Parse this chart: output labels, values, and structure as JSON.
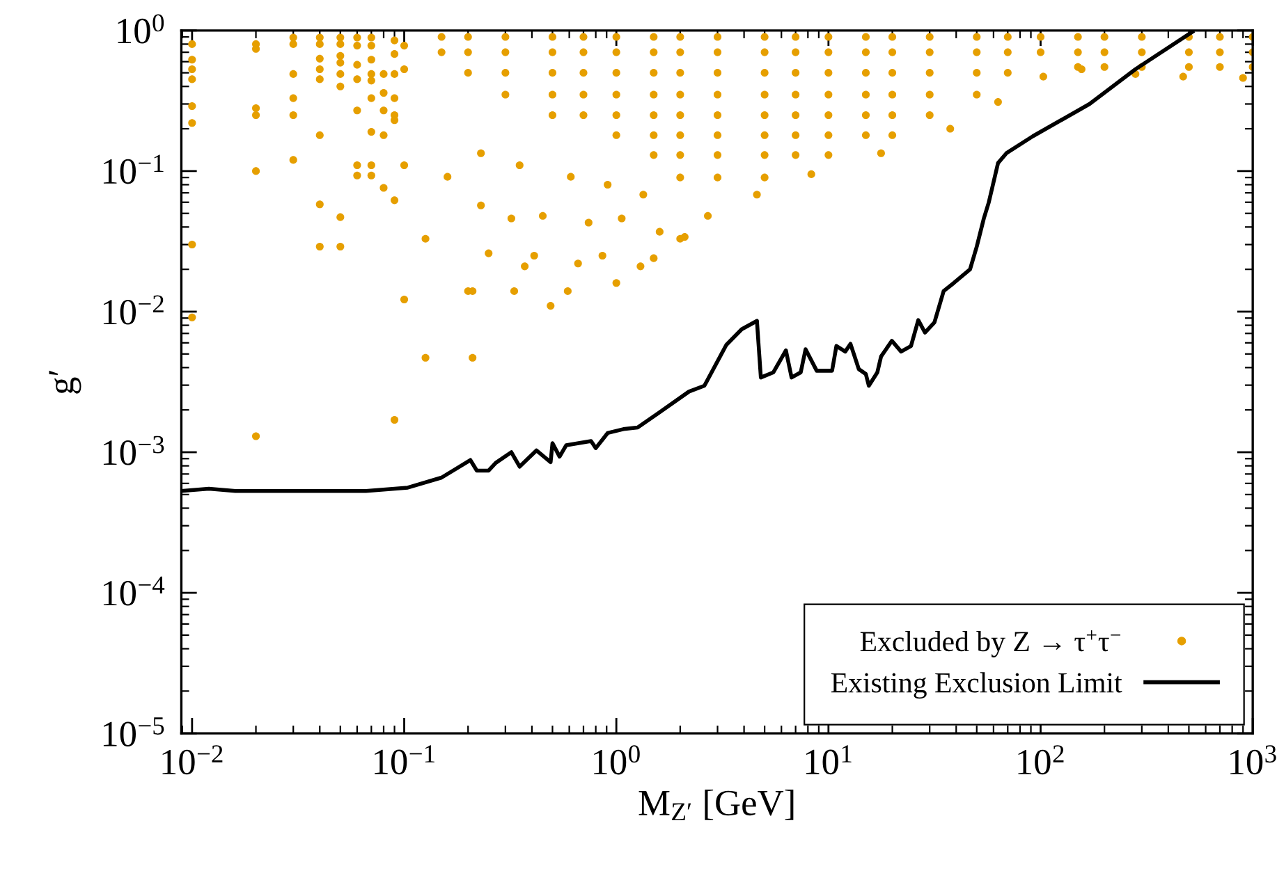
{
  "chart_data": {
    "type": "scatter",
    "xlabel": "M$_{Z′}$ [GeV]",
    "ylabel": "g′",
    "log": "xy",
    "grid": false,
    "legend": "bottom right",
    "xlim": [
      0.0089,
      1000
    ],
    "ylim": [
      1e-05,
      1
    ],
    "xticks": [
      {
        "value": 0.01,
        "label": "10$^{−2}$"
      },
      {
        "value": 0.1,
        "label": "10$^{−1}$"
      },
      {
        "value": 1,
        "label": "10$^{0}$"
      },
      {
        "value": 10,
        "label": "10$^{1}$"
      },
      {
        "value": 100,
        "label": "10$^{2}$"
      },
      {
        "value": 1000,
        "label": "10$^{3}$"
      }
    ],
    "yticks": [
      {
        "value": 1e-05,
        "label": "10$^{−5}$"
      },
      {
        "value": 0.0001,
        "label": "10$^{−4}$"
      },
      {
        "value": 0.001,
        "label": "10$^{−3}$"
      },
      {
        "value": 0.01,
        "label": "10$^{−2}$"
      },
      {
        "value": 0.1,
        "label": "10$^{−1}$"
      },
      {
        "value": 1,
        "label": "10$^{0}$"
      }
    ],
    "series": [
      {
        "name": "Excluded by Z → τ$^{+}$τ$^{−}$",
        "marker": "circle",
        "color": "#e69f00",
        "x": [
          0.01,
          0.01,
          0.01,
          0.01,
          0.01,
          0.01,
          0.01,
          0.01,
          0.02,
          0.02,
          0.02,
          0.02,
          0.02,
          0.02,
          0.03,
          0.03,
          0.03,
          0.03,
          0.03,
          0.03,
          0.04,
          0.04,
          0.04,
          0.04,
          0.04,
          0.04,
          0.04,
          0.04,
          0.05,
          0.05,
          0.05,
          0.05,
          0.05,
          0.05,
          0.05,
          0.05,
          0.06,
          0.06,
          0.06,
          0.06,
          0.06,
          0.06,
          0.06,
          0.07,
          0.07,
          0.07,
          0.07,
          0.07,
          0.07,
          0.07,
          0.07,
          0.07,
          0.08,
          0.08,
          0.08,
          0.08,
          0.08,
          0.09,
          0.09,
          0.09,
          0.09,
          0.09,
          0.09,
          0.09,
          0.09,
          0.1,
          0.1,
          0.1,
          0.1,
          0.126,
          0.126,
          0.2,
          0.21,
          0.21,
          0.33,
          0.49,
          0.59,
          1.0,
          0.25,
          0.41,
          0.66,
          0.86,
          1.3,
          1.5,
          0.37,
          0.23,
          0.32,
          0.45,
          0.74,
          1.06,
          1.6,
          2.1,
          0.16,
          0.23,
          0.35,
          0.61,
          0.91,
          1.34,
          2.0,
          2.7,
          4.6,
          8.3,
          17.7,
          37.5,
          63,
          103,
          156,
          280,
          470,
          900,
          0.15,
          0.15,
          0.2,
          0.2,
          0.2,
          0.3,
          0.3,
          0.3,
          0.3,
          0.5,
          0.5,
          0.5,
          0.5,
          0.5,
          0.7,
          0.7,
          0.7,
          0.7,
          0.7,
          1,
          1,
          1,
          1,
          1,
          1,
          1.5,
          1.5,
          1.5,
          1.5,
          1.5,
          1.5,
          1.5,
          2,
          2,
          2,
          2,
          2,
          2,
          2,
          2,
          3,
          3,
          3,
          3,
          3,
          3,
          3,
          3,
          5,
          5,
          5,
          5,
          5,
          5,
          5,
          5,
          7,
          7,
          7,
          7,
          7,
          7,
          7,
          10,
          10,
          10,
          10,
          10,
          10,
          10,
          15,
          15,
          15,
          15,
          15,
          15,
          20,
          20,
          20,
          20,
          20,
          20,
          30,
          30,
          30,
          30,
          30,
          50,
          50,
          50,
          50,
          70,
          70,
          70,
          100,
          100,
          150,
          150,
          150,
          200,
          200,
          200,
          300,
          300,
          300,
          500,
          500,
          500,
          700,
          700,
          700,
          1000,
          1000,
          1000
        ],
        "values": [
          0.8,
          0.62,
          0.53,
          0.45,
          0.29,
          0.22,
          0.03,
          0.0091,
          0.8,
          0.74,
          0.28,
          0.25,
          0.1,
          0.0013,
          0.89,
          0.8,
          0.49,
          0.33,
          0.25,
          0.12,
          0.89,
          0.8,
          0.63,
          0.53,
          0.45,
          0.18,
          0.058,
          0.029,
          0.89,
          0.8,
          0.66,
          0.59,
          0.49,
          0.4,
          0.047,
          0.029,
          0.89,
          0.78,
          0.57,
          0.45,
          0.27,
          0.11,
          0.093,
          0.89,
          0.78,
          0.62,
          0.49,
          0.44,
          0.33,
          0.19,
          0.11,
          0.093,
          0.49,
          0.36,
          0.27,
          0.18,
          0.076,
          0.85,
          0.68,
          0.49,
          0.33,
          0.25,
          0.23,
          0.062,
          0.0017,
          0.78,
          0.53,
          0.11,
          0.0122,
          0.0047,
          0.033,
          0.014,
          0.014,
          0.0047,
          0.014,
          0.011,
          0.014,
          0.016,
          0.026,
          0.025,
          0.022,
          0.025,
          0.021,
          0.024,
          0.021,
          0.057,
          0.046,
          0.048,
          0.043,
          0.046,
          0.037,
          0.034,
          0.091,
          0.134,
          0.11,
          0.091,
          0.08,
          0.068,
          0.033,
          0.048,
          0.068,
          0.095,
          0.134,
          0.2,
          0.31,
          0.47,
          0.53,
          0.49,
          0.47,
          0.46,
          0.9,
          0.7,
          0.9,
          0.7,
          0.5,
          0.9,
          0.7,
          0.5,
          0.35,
          0.9,
          0.7,
          0.5,
          0.35,
          0.25,
          0.9,
          0.7,
          0.5,
          0.35,
          0.25,
          0.9,
          0.7,
          0.5,
          0.35,
          0.25,
          0.18,
          0.9,
          0.7,
          0.5,
          0.35,
          0.25,
          0.18,
          0.13,
          0.9,
          0.7,
          0.5,
          0.35,
          0.25,
          0.18,
          0.13,
          0.09,
          0.9,
          0.7,
          0.5,
          0.35,
          0.25,
          0.18,
          0.13,
          0.09,
          0.9,
          0.7,
          0.5,
          0.35,
          0.25,
          0.18,
          0.13,
          0.09,
          0.9,
          0.7,
          0.5,
          0.35,
          0.25,
          0.18,
          0.13,
          0.9,
          0.7,
          0.5,
          0.35,
          0.25,
          0.18,
          0.13,
          0.9,
          0.7,
          0.5,
          0.35,
          0.25,
          0.18,
          0.9,
          0.7,
          0.5,
          0.35,
          0.25,
          0.18,
          0.9,
          0.7,
          0.5,
          0.35,
          0.25,
          0.9,
          0.7,
          0.5,
          0.35,
          0.9,
          0.7,
          0.5,
          0.9,
          0.7,
          0.9,
          0.7,
          0.55,
          0.9,
          0.7,
          0.55,
          0.9,
          0.7,
          0.55,
          0.9,
          0.7,
          0.55,
          0.9,
          0.7,
          0.55,
          0.9,
          0.7,
          0.55
        ]
      },
      {
        "name": "Existing Exclusion Limit",
        "type": "line",
        "color": "#000000",
        "x": [
          0.0089,
          0.012,
          0.016,
          0.066,
          0.104,
          0.15,
          0.205,
          0.22,
          0.25,
          0.27,
          0.32,
          0.35,
          0.42,
          0.49,
          0.5,
          0.54,
          0.58,
          0.76,
          0.8,
          0.91,
          1.08,
          1.26,
          1.58,
          2.2,
          2.6,
          3.3,
          3.9,
          4.6,
          4.8,
          5.5,
          6.3,
          6.7,
          7.4,
          7.8,
          8.8,
          10.4,
          10.9,
          12,
          12.7,
          13.9,
          15,
          15.5,
          17,
          17.7,
          19.9,
          22,
          24.5,
          26.5,
          28.5,
          31.6,
          34.9,
          39,
          46.5,
          50,
          54,
          57,
          63,
          69,
          92,
          170,
          280,
          520
        ],
        "values": [
          0.00053,
          0.00055,
          0.00053,
          0.00053,
          0.00056,
          0.00066,
          0.00088,
          0.00074,
          0.00074,
          0.00084,
          0.001,
          0.00079,
          0.00103,
          0.00085,
          0.00116,
          0.00093,
          0.00112,
          0.0012,
          0.00107,
          0.00137,
          0.00146,
          0.0015,
          0.0019,
          0.0027,
          0.00297,
          0.0058,
          0.0075,
          0.0086,
          0.0034,
          0.0037,
          0.0053,
          0.0034,
          0.0037,
          0.0054,
          0.0038,
          0.0038,
          0.0057,
          0.0052,
          0.0059,
          0.0039,
          0.0036,
          0.00297,
          0.0037,
          0.0048,
          0.0062,
          0.0052,
          0.0057,
          0.0087,
          0.0071,
          0.0084,
          0.014,
          0.016,
          0.02,
          0.029,
          0.046,
          0.06,
          0.114,
          0.134,
          0.177,
          0.3,
          0.53,
          0.98
        ]
      }
    ]
  }
}
